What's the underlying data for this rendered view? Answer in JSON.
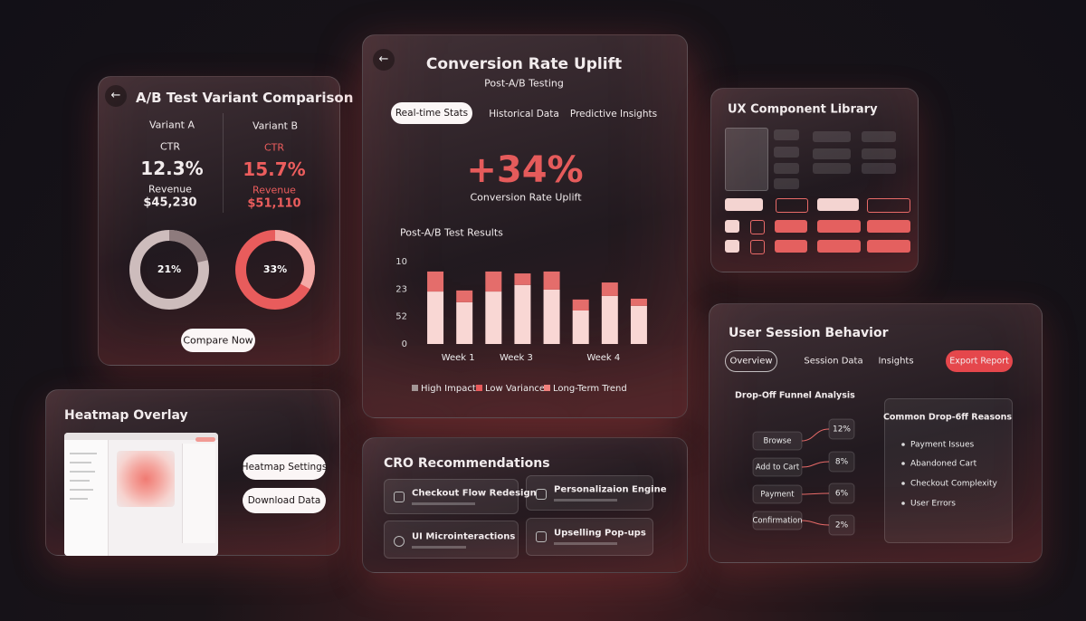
{
  "ab_test": {
    "title": "A/B Test Variant Comparison",
    "variants": [
      {
        "name": "Variant A",
        "ctr_label": "CTR",
        "ctr": "12.3%",
        "revenue_label": "Revenue",
        "revenue": "$45,230",
        "share": 21,
        "share_label": "21%"
      },
      {
        "name": "Variant B",
        "ctr_label": "CTR",
        "ctr": "15.7%",
        "revenue_label": "Revenue",
        "revenue": "$51,110",
        "share": 33,
        "share_label": "33%"
      }
    ],
    "button": "Compare Now"
  },
  "heatmap": {
    "title": "Heatmap Overlay",
    "buttons": [
      "Heatmap Settings",
      "Download Data"
    ]
  },
  "conversion": {
    "title": "Conversion Rate Uplift",
    "subtitle": "Post-A/B Testing",
    "tabs": [
      "Real-time Stats",
      "Historical Data",
      "Predictive Insights"
    ],
    "uplift": "+34%",
    "uplift_label": "Conversion Rate Uplift",
    "chart": {
      "type": "bar",
      "title": "Post-A/B Test Results",
      "categories": [
        null,
        "Week 1",
        null,
        "Week 3",
        null,
        null,
        "Week 4",
        null
      ],
      "series": [
        {
          "color": "#f9d7d4",
          "values": [
            1.91,
            1.52,
            1.91,
            2.15,
            1.98,
            1.22,
            1.75,
            1.39
          ]
        },
        {
          "color": "#e46d6b",
          "values": [
            0.73,
            0.43,
            0.73,
            0.42,
            0.66,
            0.4,
            0.49,
            0.26
          ]
        }
      ],
      "ylim": [
        0,
        3
      ],
      "yticks": [
        0,
        {
          "value": 1,
          "label": "52"
        },
        {
          "value": 2,
          "label": "23"
        },
        {
          "value": 3,
          "label": "10"
        }
      ],
      "legend": [
        {
          "name": "High Impact",
          "color": "#a39696"
        },
        {
          "name": "Low Variance",
          "color": "#e9595a"
        },
        {
          "name": "Long-Term Trend",
          "color": "#ef7f7b"
        }
      ]
    }
  },
  "cro": {
    "title": "CRO Recommendations",
    "items": [
      "Checkout Flow Redesign",
      "Personalizaion Engine",
      "UI Microinteractions",
      "Upselling Pop-ups"
    ]
  },
  "ux_library": {
    "title": "UX Component Library"
  },
  "session": {
    "title": "User Session Behavior",
    "tabs": [
      "Overview",
      "Session Data",
      "Insights"
    ],
    "export": "Export Report",
    "funnel_title": "Drop-Off Funnel Analysis",
    "steps": [
      "Browse",
      "Add to Cart",
      "Payment",
      "Confirmation"
    ],
    "rates": [
      "12%",
      "8%",
      "6%",
      "2%"
    ],
    "reasons_title": "Common Drop-6ff Reasons",
    "reasons": [
      "Payment Issues",
      "Abandoned Cart",
      "Checkout Complexity",
      "User Errors"
    ]
  }
}
